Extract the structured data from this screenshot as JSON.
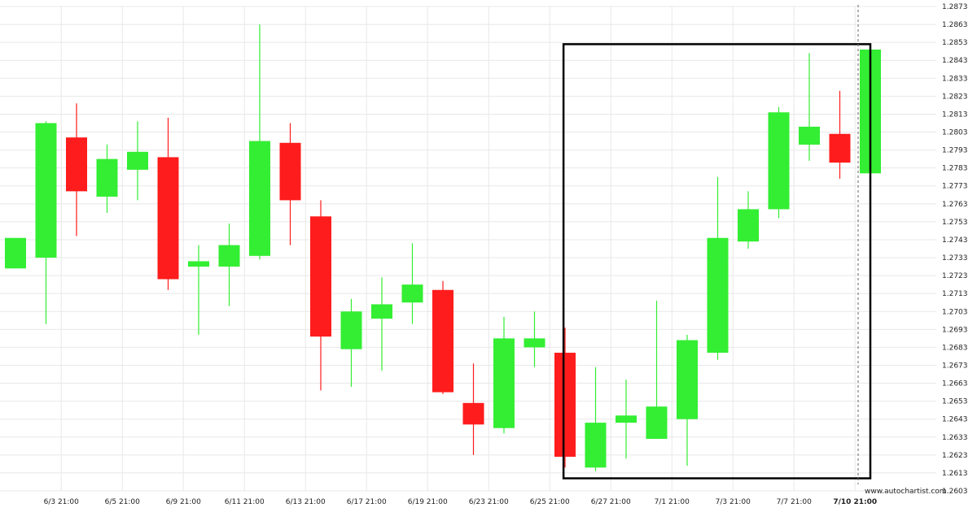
{
  "chart_data": {
    "type": "candlestick",
    "y_axis": {
      "range": [
        1.2603,
        1.2873
      ],
      "ticks": [
        "1.2603",
        "1.2613",
        "1.2623",
        "1.2633",
        "1.2643",
        "1.2653",
        "1.2663",
        "1.2673",
        "1.2683",
        "1.2693",
        "1.2703",
        "1.2713",
        "1.2723",
        "1.2733",
        "1.2743",
        "1.2753",
        "1.2763",
        "1.2773",
        "1.2783",
        "1.2793",
        "1.2803",
        "1.2813",
        "1.2823",
        "1.2833",
        "1.2843",
        "1.2853",
        "1.2863",
        "1.2873"
      ],
      "position": "right"
    },
    "x_axis": {
      "labels": [
        {
          "candle": 1.5,
          "text": "6/3 21:00"
        },
        {
          "candle": 3.5,
          "text": "6/5 21:00"
        },
        {
          "candle": 5.5,
          "text": "6/9 21:00"
        },
        {
          "candle": 7.5,
          "text": "6/11 21:00"
        },
        {
          "candle": 9.5,
          "text": "6/13 21:00"
        },
        {
          "candle": 11.5,
          "text": "6/17 21:00"
        },
        {
          "candle": 13.5,
          "text": "6/19 21:00"
        },
        {
          "candle": 15.5,
          "text": "6/23 21:00"
        },
        {
          "candle": 17.5,
          "text": "6/25 21:00"
        },
        {
          "candle": 19.5,
          "text": "6/27 21:00"
        },
        {
          "candle": 21.5,
          "text": "7/1 21:00"
        },
        {
          "candle": 23.5,
          "text": "7/3 21:00"
        },
        {
          "candle": 25.5,
          "text": "7/7 21:00"
        },
        {
          "candle": 27.5,
          "text": "7/10 21:00",
          "bold": true
        }
      ]
    },
    "grid": true,
    "colors": {
      "up": "#33ee33",
      "down": "#ff1c1c",
      "grid": "#e8e8e8",
      "box": "#000000"
    },
    "candles": [
      {
        "o": 1.2727,
        "h": 1.2744,
        "l": 1.2727,
        "c": 1.2744
      },
      {
        "o": 1.2733,
        "h": 1.2809,
        "l": 1.2696,
        "c": 1.2808
      },
      {
        "o": 1.28,
        "h": 1.2819,
        "l": 1.2745,
        "c": 1.277
      },
      {
        "o": 1.2767,
        "h": 1.2796,
        "l": 1.2758,
        "c": 1.2788
      },
      {
        "o": 1.2782,
        "h": 1.2809,
        "l": 1.2765,
        "c": 1.2792
      },
      {
        "o": 1.2789,
        "h": 1.2811,
        "l": 1.2715,
        "c": 1.2721
      },
      {
        "o": 1.2728,
        "h": 1.274,
        "l": 1.269,
        "c": 1.2731
      },
      {
        "o": 1.2728,
        "h": 1.2752,
        "l": 1.2706,
        "c": 1.274
      },
      {
        "o": 1.2734,
        "h": 1.2863,
        "l": 1.2732,
        "c": 1.2798
      },
      {
        "o": 1.2797,
        "h": 1.2808,
        "l": 1.274,
        "c": 1.2765
      },
      {
        "o": 1.2756,
        "h": 1.2765,
        "l": 1.2659,
        "c": 1.2689
      },
      {
        "o": 1.2682,
        "h": 1.271,
        "l": 1.2661,
        "c": 1.2703
      },
      {
        "o": 1.2699,
        "h": 1.2722,
        "l": 1.267,
        "c": 1.2707
      },
      {
        "o": 1.2708,
        "h": 1.2741,
        "l": 1.2696,
        "c": 1.2718
      },
      {
        "o": 1.2715,
        "h": 1.272,
        "l": 1.2657,
        "c": 1.2658
      },
      {
        "o": 1.2652,
        "h": 1.2674,
        "l": 1.2623,
        "c": 1.264
      },
      {
        "o": 1.2638,
        "h": 1.27,
        "l": 1.2635,
        "c": 1.2688
      },
      {
        "o": 1.2683,
        "h": 1.2703,
        "l": 1.2672,
        "c": 1.2688
      },
      {
        "o": 1.268,
        "h": 1.2694,
        "l": 1.2616,
        "c": 1.2622
      },
      {
        "o": 1.2616,
        "h": 1.2672,
        "l": 1.2614,
        "c": 1.2641
      },
      {
        "o": 1.2641,
        "h": 1.2665,
        "l": 1.2621,
        "c": 1.2645
      },
      {
        "o": 1.2632,
        "h": 1.2709,
        "l": 1.2632,
        "c": 1.265
      },
      {
        "o": 1.2643,
        "h": 1.269,
        "l": 1.2617,
        "c": 1.2687
      },
      {
        "o": 1.268,
        "h": 1.2778,
        "l": 1.2676,
        "c": 1.2744
      },
      {
        "o": 1.2742,
        "h": 1.277,
        "l": 1.2738,
        "c": 1.276
      },
      {
        "o": 1.276,
        "h": 1.2817,
        "l": 1.2755,
        "c": 1.2814
      },
      {
        "o": 1.2796,
        "h": 1.2847,
        "l": 1.2787,
        "c": 1.2806
      },
      {
        "o": 1.2802,
        "h": 1.2826,
        "l": 1.2777,
        "c": 1.2786
      },
      {
        "o": 1.278,
        "h": 1.2849,
        "l": 1.278,
        "c": 1.2849
      }
    ],
    "highlight_box": {
      "from_candle": 17.95,
      "to_candle": 28.0,
      "top_price": 1.2852,
      "bottom_price": 1.261
    },
    "last_bar_marker_candle": 27.6
  },
  "watermark": "www.autochartist.com"
}
